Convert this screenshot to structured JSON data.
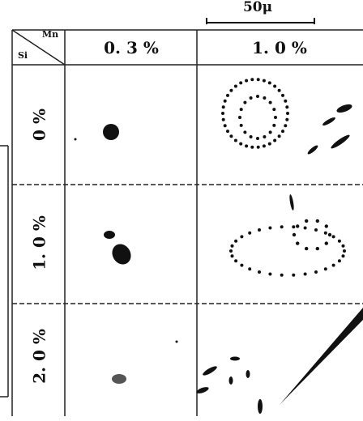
{
  "scale_bar": "50μ",
  "header": {
    "mn": "Mn",
    "si": "Si"
  },
  "columns": [
    "0. 3 %",
    "1. 0 %"
  ],
  "rows": [
    "0 %",
    "1. 0 %",
    "2. 0 %"
  ]
}
